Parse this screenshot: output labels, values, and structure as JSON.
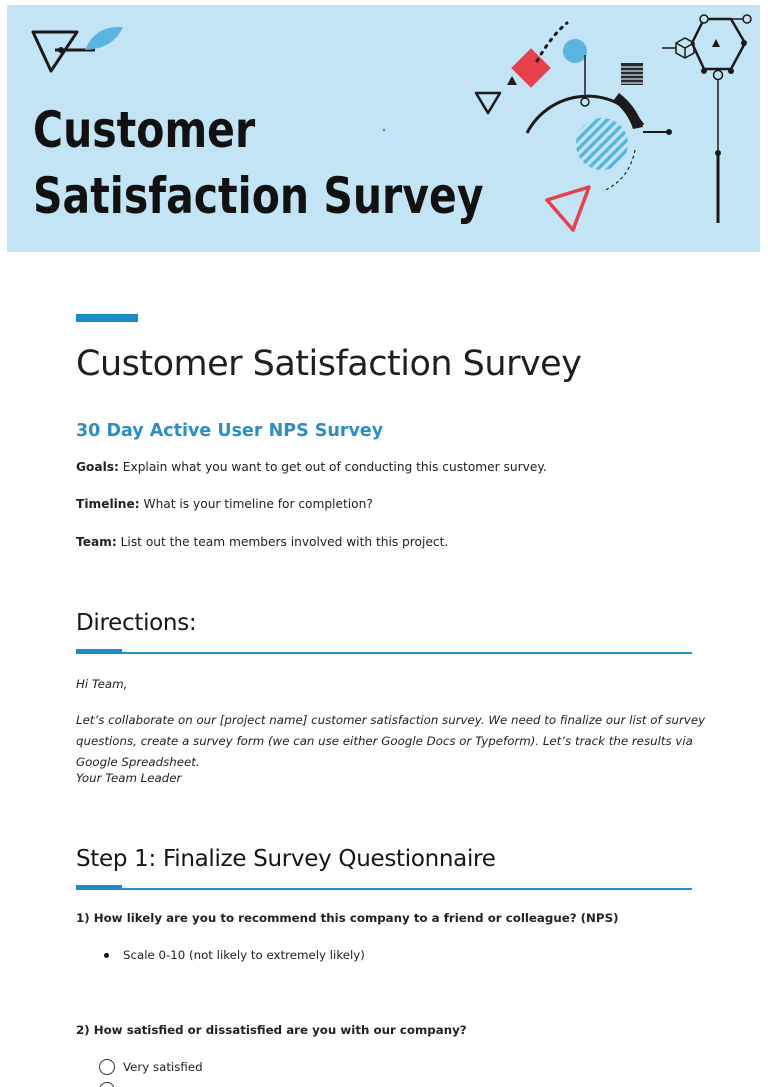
{
  "banner": {
    "title_line1": "Customer",
    "title_line2": "Satisfaction Survey",
    "background": "#c3e4f4"
  },
  "document": {
    "title": "Customer Satisfaction Survey",
    "subtitle": "30 Day Active User NPS Survey",
    "accent_color": "#1b8cc8",
    "meta": [
      {
        "label": "Goals:",
        "text": " Explain what you want to get out of conducting this customer survey."
      },
      {
        "label": "Timeline:",
        "text": " What is your timeline for completion?"
      },
      {
        "label": "Team:",
        "text": " List out the team members involved with this project."
      }
    ]
  },
  "directions": {
    "heading": "Directions:",
    "greeting": "Hi Team,",
    "body": "Let’s collaborate on our [project name] customer satisfaction survey. We need to finalize our list of survey questions, create a survey form (we can use either Google Docs or Typeform). Let’s track the results via Google Spreadsheet.",
    "signoff": "Your Team Leader"
  },
  "step1": {
    "heading": "Step 1: Finalize Survey Questionnaire",
    "q1": {
      "text": "1) How likely are you to recommend this company to a friend or colleague? (NPS)",
      "bullets": [
        "Scale 0-10 (not likely to extremely likely)"
      ]
    },
    "q2": {
      "text": "2) How satisfied or dissatisfied are you with our company?",
      "options": [
        "Very satisfied",
        ""
      ]
    }
  }
}
